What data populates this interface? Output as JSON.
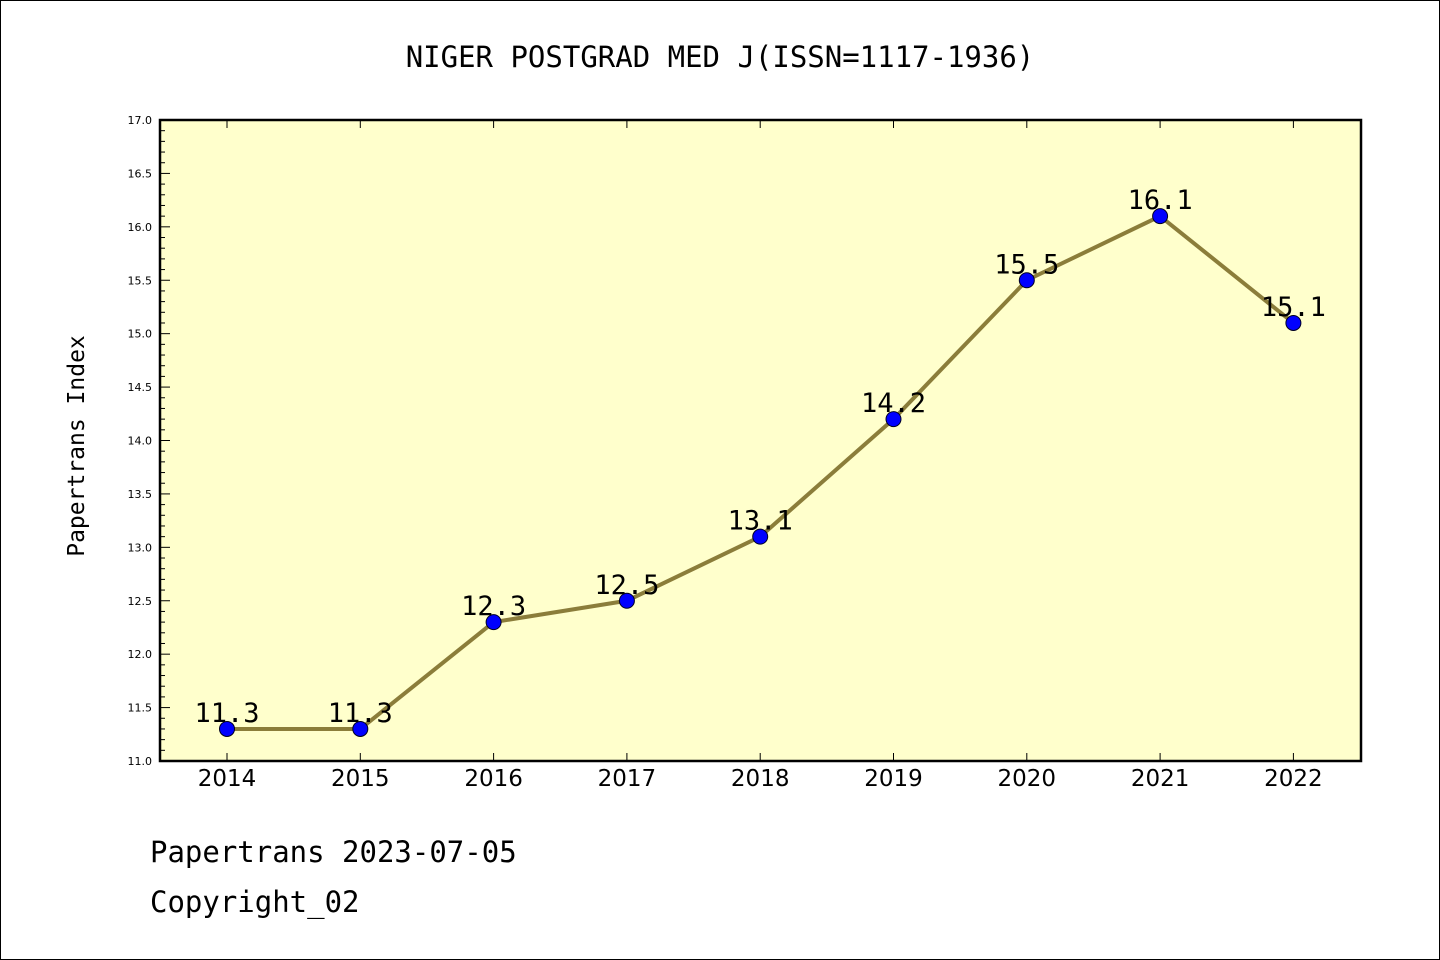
{
  "chart_data": {
    "type": "line",
    "title": "NIGER POSTGRAD MED J(ISSN=1117-1936)",
    "ylabel": "Papertrans Index",
    "xlabel": "",
    "categories": [
      "2014",
      "2015",
      "2016",
      "2017",
      "2018",
      "2019",
      "2020",
      "2021",
      "2022"
    ],
    "values": [
      11.3,
      11.3,
      12.3,
      12.5,
      13.1,
      14.2,
      15.5,
      16.1,
      15.1
    ],
    "data_labels": [
      "11.3",
      "11.3",
      "12.3",
      "12.5",
      "13.1",
      "14.2",
      "15.5",
      "16.1",
      "15.1"
    ],
    "ylim": [
      11.0,
      17.0
    ],
    "yticks": [
      "11.0",
      "11.5",
      "12.0",
      "12.5",
      "13.0",
      "13.5",
      "14.0",
      "14.5",
      "15.0",
      "15.5",
      "16.0",
      "16.5",
      "17.0"
    ],
    "grid": false,
    "legend": "none",
    "colors": {
      "plot_background": "#ffffcc",
      "line": "#8b7d3a",
      "marker": "#0000ff"
    }
  },
  "footer": {
    "date_text": "Papertrans 2023-07-05",
    "copyright_text": "Copyright_02"
  }
}
